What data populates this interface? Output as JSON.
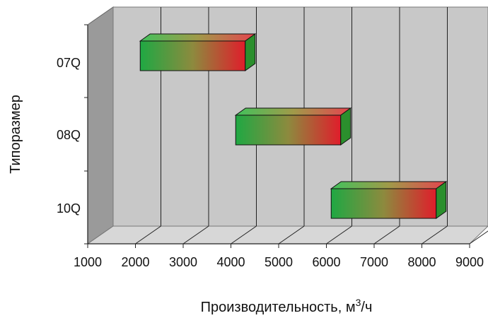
{
  "chart_data": {
    "type": "bar",
    "orientation": "horizontal",
    "style": "3d-floating-range",
    "title": "",
    "xlabel": "Производительность, м",
    "xlabel_sup": "3",
    "xlabel_tail": "/ч",
    "ylabel": "Типоразмер",
    "xlim": [
      1000,
      9000
    ],
    "x_ticks": [
      1000,
      2000,
      3000,
      4000,
      5000,
      6000,
      7000,
      8000,
      9000
    ],
    "x_tick_labels": [
      "1000",
      "2000",
      "3000",
      "4000",
      "5000",
      "6000",
      "7000",
      "8000",
      "9000"
    ],
    "categories": [
      "07Q",
      "08Q",
      "10Q"
    ],
    "series": [
      {
        "ranges": [
          [
            2100,
            4300
          ],
          [
            4100,
            6300
          ],
          [
            6100,
            8300
          ]
        ]
      }
    ],
    "grid": true,
    "legend": "none",
    "colors": {
      "bar_start": "#1fa843",
      "bar_mid": "#8d8a3e",
      "bar_end": "#e01d2b",
      "wall": "#c8c8c8",
      "side_wall": "#9a9a9a",
      "floor": "#d7d7d7",
      "grid": "#202020"
    }
  }
}
